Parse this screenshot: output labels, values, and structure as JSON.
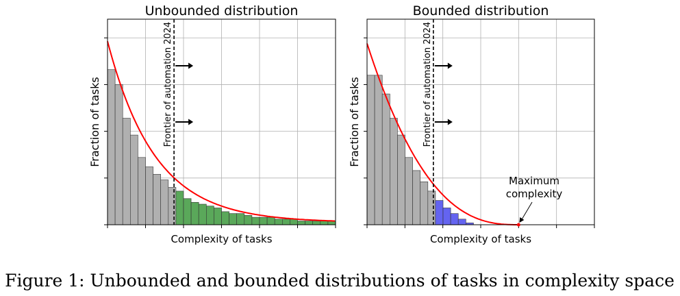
{
  "caption": "Figure 1: Unbounded and bounded distributions of tasks in complexity space",
  "chart_data": [
    {
      "type": "bar",
      "title": "Unbounded distribution",
      "xlabel": "Complexity of tasks",
      "ylabel": "Fraction of tasks",
      "frontier_label": "Frontier of automation 2024",
      "frontier_x": 7,
      "xlim": [
        0,
        24
      ],
      "ylim": [
        0,
        1.1
      ],
      "grid": true,
      "bar_colors": {
        "below_frontier": "#b0b0b0",
        "above_frontier": "#5aa85a"
      },
      "curve_color": "#ff0000",
      "bars": [
        0.83,
        0.75,
        0.57,
        0.48,
        0.36,
        0.31,
        0.27,
        0.24,
        0.2,
        0.18,
        0.14,
        0.12,
        0.11,
        0.1,
        0.09,
        0.07,
        0.06,
        0.06,
        0.05,
        0.04,
        0.04,
        0.04,
        0.03,
        0.03,
        0.03,
        0.02,
        0.02,
        0.02,
        0.02,
        0.02,
        0.01
      ]
    },
    {
      "type": "bar",
      "title": "Bounded distribution",
      "xlabel": "Complexity of tasks",
      "ylabel": "Fraction of tasks",
      "frontier_label": "Frontier of automation 2024",
      "frontier_x": 7,
      "xlim": [
        0,
        24
      ],
      "ylim": [
        0,
        1.1
      ],
      "grid": true,
      "bar_colors": {
        "below_frontier": "#b0b0b0",
        "above_frontier": "#6464f0"
      },
      "curve_color": "#ff0000",
      "bars": [
        0.8,
        0.8,
        0.7,
        0.57,
        0.48,
        0.36,
        0.29,
        0.23,
        0.18,
        0.13,
        0.09,
        0.06,
        0.03,
        0.01
      ],
      "annotation": {
        "text": [
          "Maximum",
          "complexity"
        ],
        "x": 16,
        "y": 0
      }
    }
  ]
}
